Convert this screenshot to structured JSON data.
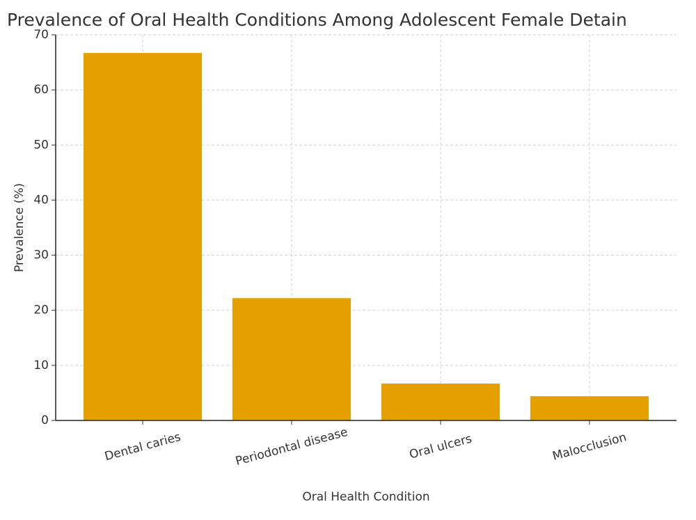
{
  "chart_data": {
    "type": "bar",
    "title": "Prevalence of Oral Health Conditions Among Adolescent Female Detain",
    "x_label": "Oral Health Condition",
    "y_label": "Prevalence (%)",
    "categories": [
      "Dental caries",
      "Periodontal disease",
      "Oral ulcers",
      "Malocclusion"
    ],
    "values": [
      66.7,
      22.2,
      6.7,
      4.4
    ],
    "color": "#e5a000",
    "ylim": [
      0,
      70
    ],
    "yticks": [
      0,
      10,
      20,
      30,
      40,
      50,
      60,
      70
    ],
    "grid": true
  }
}
